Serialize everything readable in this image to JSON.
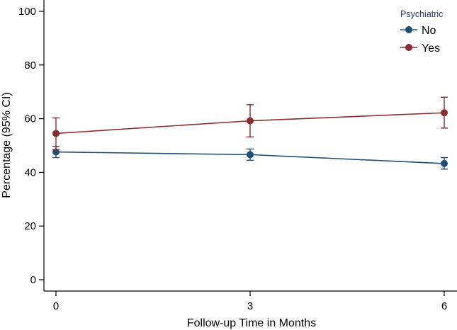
{
  "chart_data": {
    "type": "line",
    "xlabel": "Follow-up Time in Months",
    "ylabel": "Percentage (95% CI)",
    "x": [
      0,
      3,
      6
    ],
    "x_ticks": [
      "0",
      "3",
      "6"
    ],
    "y_ticks": [
      "0",
      "20",
      "40",
      "60",
      "80",
      "100"
    ],
    "ylim": [
      0,
      100
    ],
    "grid": false,
    "legend": {
      "title": "Psychiatric",
      "placement": "top-right"
    },
    "series": [
      {
        "name": "No",
        "color": "#1f4e79",
        "values": [
          47.6,
          46.6,
          43.3
        ],
        "ci_low": [
          45.5,
          44.5,
          41.2
        ],
        "ci_high": [
          49.7,
          48.7,
          45.5
        ]
      },
      {
        "name": "Yes",
        "color": "#8b2c2f",
        "values": [
          54.5,
          59.2,
          62.2
        ],
        "ci_low": [
          48.5,
          53.2,
          56.5
        ],
        "ci_high": [
          60.3,
          65.2,
          68.0
        ]
      }
    ]
  },
  "colors": {
    "legend_title": "#1f3a6e",
    "axis": "#000000"
  }
}
